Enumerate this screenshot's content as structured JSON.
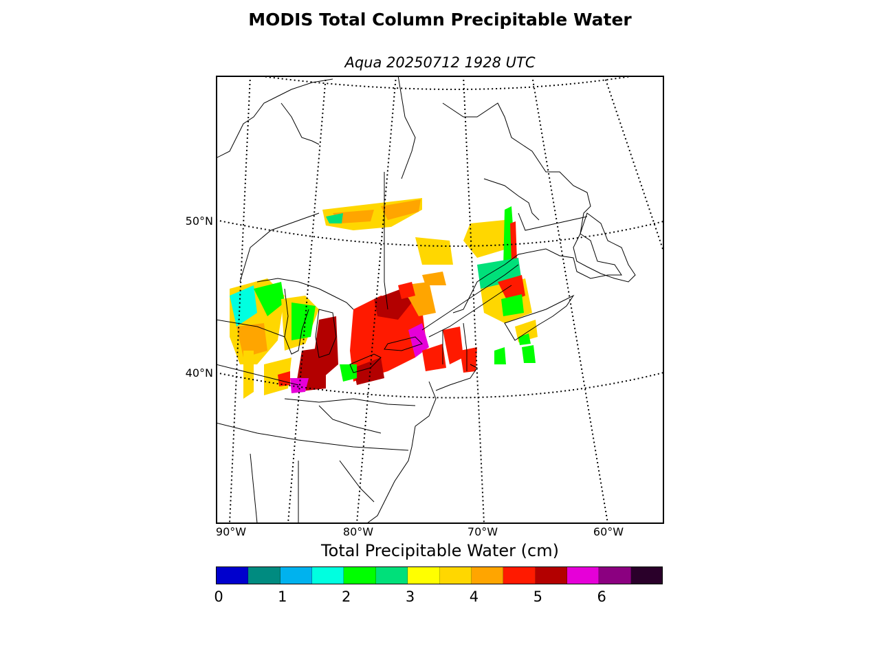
{
  "figure": {
    "title": "MODIS Total Column Precipitable Water",
    "subtitle": "Aqua 20250712 1928 UTC"
  },
  "map": {
    "projection": "lambert-conformal",
    "lat_labels": [
      {
        "label": "50°N"
      },
      {
        "label": "40°N"
      }
    ],
    "lon_labels": [
      {
        "label": "90°W"
      },
      {
        "label": "80°W"
      },
      {
        "label": "70°W"
      },
      {
        "label": "60°W"
      }
    ],
    "layers": [
      "coastlines",
      "country-borders",
      "state-province-borders",
      "lat-lon-graticule",
      "precipitable-water-swath"
    ]
  },
  "colorbar": {
    "label": "Total Precipitable Water (cm)",
    "range": [
      0,
      7
    ],
    "step": 0.5,
    "colors": [
      "#0000cd",
      "#008b80",
      "#00b2ee",
      "#00ffe0",
      "#00ff00",
      "#00e07a",
      "#ffff00",
      "#ffd700",
      "#ffa500",
      "#ff1a00",
      "#b30000",
      "#e600d8",
      "#8b0080",
      "#2a002a"
    ],
    "ticks": [
      "0",
      "1",
      "2",
      "3",
      "4",
      "5",
      "6"
    ]
  }
}
